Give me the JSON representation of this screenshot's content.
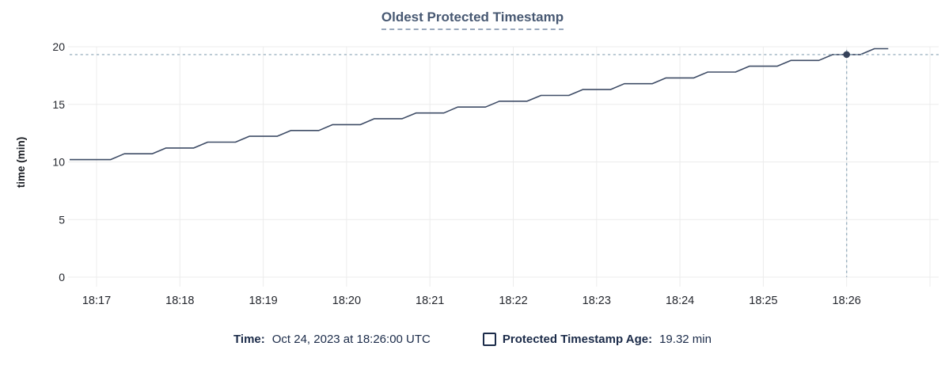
{
  "chart_data": {
    "type": "line",
    "title": "Oldest Protected Timestamp",
    "xlabel": "",
    "ylabel": "time (min)",
    "ylim": [
      0,
      20
    ],
    "y_ticks": [
      0,
      5,
      10,
      15,
      20
    ],
    "x_tick_labels": [
      "18:17",
      "18:18",
      "18:19",
      "18:20",
      "18:21",
      "18:22",
      "18:23",
      "18:24",
      "18:25",
      "18:26"
    ],
    "x_tick_interval_seconds": 60,
    "unlabeled_gridline_offsets_seconds": [
      600
    ],
    "grid": true,
    "legend_position": "bottom",
    "series": [
      {
        "name": "Protected Timestamp Age",
        "unit": "min",
        "start_offset_seconds": -20,
        "sample_interval_seconds": 10,
        "values": [
          10.2,
          10.2,
          10.2,
          10.2,
          10.71,
          10.71,
          10.71,
          11.21,
          11.21,
          11.21,
          11.72,
          11.72,
          11.72,
          12.23,
          12.23,
          12.23,
          12.73,
          12.73,
          12.73,
          13.24,
          13.24,
          13.24,
          13.75,
          13.75,
          13.75,
          14.25,
          14.25,
          14.25,
          14.76,
          14.76,
          14.76,
          15.27,
          15.27,
          15.27,
          15.77,
          15.77,
          15.77,
          16.28,
          16.28,
          16.28,
          16.79,
          16.79,
          16.79,
          17.29,
          17.29,
          17.29,
          17.8,
          17.8,
          17.8,
          18.31,
          18.31,
          18.31,
          18.81,
          18.81,
          18.81,
          19.32,
          19.32,
          19.32,
          19.83,
          19.83
        ]
      }
    ],
    "hover_point": {
      "time": "Oct 24, 2023 at 18:26:00 UTC",
      "offset_seconds": 540,
      "value": 19.32
    }
  },
  "legend": {
    "time_label": "Time:",
    "time_value": "Oct 24, 2023 at 18:26:00 UTC",
    "series_label": "Protected Timestamp Age:",
    "series_value": "19.32 min"
  },
  "colors": {
    "line": "#3e4c66",
    "dot": "#36425a",
    "crosshair": "#9db3c2",
    "grid": "#ececec",
    "title": "#475872",
    "title_underline": "#9aa9bd",
    "legend_text": "#1b2b49",
    "axis_text": "#24272e",
    "axis_title_text": "#1a1d23",
    "background": "#ffffff"
  }
}
